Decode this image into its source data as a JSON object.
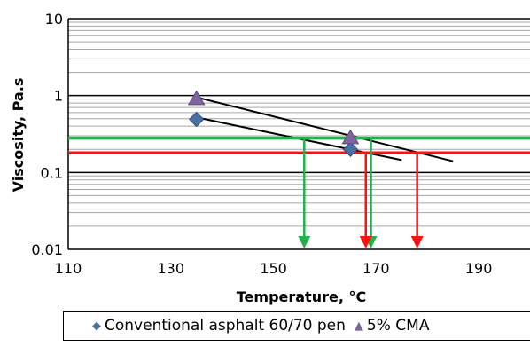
{
  "chart_data": {
    "type": "scatter",
    "title": "",
    "xlabel": "Temperature, °C",
    "ylabel": "Viscosity, Pa.s",
    "xlim": [
      110,
      200
    ],
    "ylim": [
      0.01,
      10
    ],
    "yscale": "log",
    "x_ticks": [
      110,
      130,
      150,
      170,
      190
    ],
    "x_tick_labels": [
      "110",
      "130",
      "150",
      "170",
      "190"
    ],
    "y_ticks": [
      0.01,
      0.1,
      1,
      10
    ],
    "y_tick_labels": [
      "0.01",
      "0.1",
      "1",
      "10"
    ],
    "grid": true,
    "legend_position": "bottom",
    "series": [
      {
        "name": "Conventional asphalt 60/70 pen",
        "marker": "diamond",
        "color": "#4a6fa5",
        "points": [
          [
            135,
            0.49
          ],
          [
            165,
            0.2
          ]
        ],
        "trendline": [
          [
            135,
            0.52
          ],
          [
            175,
            0.145
          ]
        ]
      },
      {
        "name": "5% CMA",
        "marker": "triangle",
        "color": "#8064a2",
        "points": [
          [
            135,
            0.9
          ],
          [
            165,
            0.28
          ]
        ],
        "trendline": [
          [
            135,
            0.95
          ],
          [
            185,
            0.14
          ]
        ]
      }
    ],
    "reference_lines": [
      {
        "color": "#22b14c",
        "y": 0.28,
        "x_start": 110,
        "arrows_at_x": [
          156,
          169
        ]
      },
      {
        "color": "#ff1010",
        "y": 0.18,
        "x_start": 110,
        "arrows_at_x": [
          168,
          178
        ]
      }
    ]
  }
}
